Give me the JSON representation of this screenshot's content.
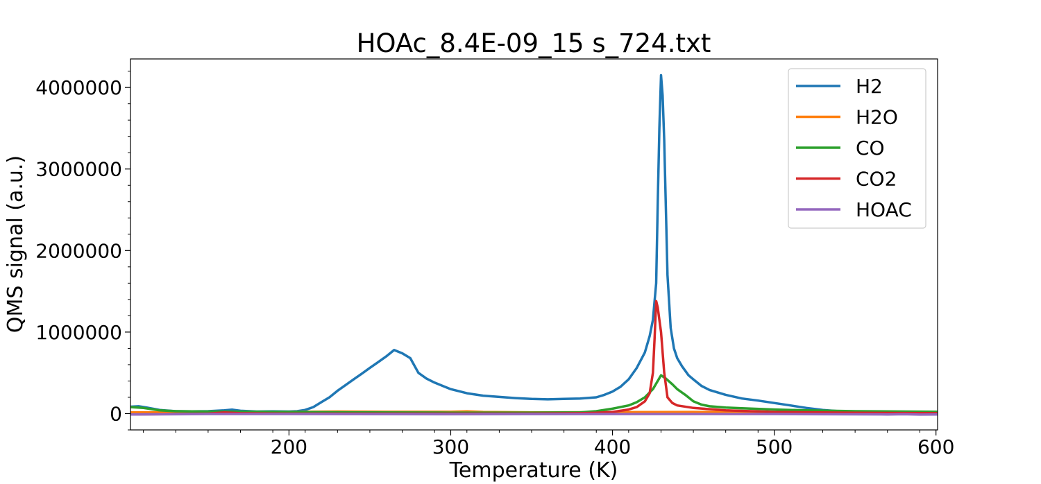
{
  "chart_data": {
    "type": "line",
    "title": "HOAc_8.4E-09_15 s_724.txt",
    "xlabel": "Temperature (K)",
    "ylabel": "QMS signal (a.u.)",
    "xlim": [
      102,
      601
    ],
    "ylim": [
      -200000,
      4350000
    ],
    "xticks": [
      200,
      300,
      400,
      500,
      600
    ],
    "xtick_labels": [
      "200",
      "300",
      "400",
      "500",
      "600"
    ],
    "yticks": [
      0,
      1000000,
      2000000,
      3000000,
      4000000
    ],
    "ytick_labels": [
      "0",
      "1000000",
      "2000000",
      "3000000",
      "4000000"
    ],
    "legend_position": "top-right",
    "grid": false,
    "series": [
      {
        "name": "H2",
        "color": "#1f77b4",
        "points": [
          [
            102,
            85000
          ],
          [
            107,
            90000
          ],
          [
            112,
            75000
          ],
          [
            120,
            45000
          ],
          [
            130,
            30000
          ],
          [
            140,
            28000
          ],
          [
            150,
            30000
          ],
          [
            160,
            40000
          ],
          [
            165,
            48000
          ],
          [
            170,
            35000
          ],
          [
            180,
            25000
          ],
          [
            190,
            28000
          ],
          [
            200,
            25000
          ],
          [
            205,
            30000
          ],
          [
            210,
            45000
          ],
          [
            215,
            80000
          ],
          [
            220,
            140000
          ],
          [
            225,
            200000
          ],
          [
            230,
            280000
          ],
          [
            235,
            350000
          ],
          [
            240,
            420000
          ],
          [
            245,
            490000
          ],
          [
            250,
            560000
          ],
          [
            255,
            630000
          ],
          [
            260,
            700000
          ],
          [
            265,
            780000
          ],
          [
            270,
            740000
          ],
          [
            275,
            680000
          ],
          [
            280,
            500000
          ],
          [
            285,
            430000
          ],
          [
            290,
            380000
          ],
          [
            295,
            340000
          ],
          [
            300,
            300000
          ],
          [
            310,
            250000
          ],
          [
            320,
            220000
          ],
          [
            330,
            205000
          ],
          [
            340,
            190000
          ],
          [
            350,
            180000
          ],
          [
            360,
            175000
          ],
          [
            370,
            180000
          ],
          [
            380,
            185000
          ],
          [
            390,
            200000
          ],
          [
            395,
            230000
          ],
          [
            400,
            270000
          ],
          [
            405,
            330000
          ],
          [
            410,
            420000
          ],
          [
            415,
            560000
          ],
          [
            420,
            750000
          ],
          [
            423,
            950000
          ],
          [
            425,
            1150000
          ],
          [
            427,
            1600000
          ],
          [
            428,
            2600000
          ],
          [
            429,
            3500000
          ],
          [
            430,
            4150000
          ],
          [
            431,
            3900000
          ],
          [
            432,
            3350000
          ],
          [
            434,
            1700000
          ],
          [
            436,
            1050000
          ],
          [
            438,
            800000
          ],
          [
            440,
            680000
          ],
          [
            443,
            580000
          ],
          [
            447,
            470000
          ],
          [
            450,
            420000
          ],
          [
            455,
            340000
          ],
          [
            460,
            290000
          ],
          [
            470,
            230000
          ],
          [
            480,
            185000
          ],
          [
            490,
            160000
          ],
          [
            500,
            130000
          ],
          [
            510,
            100000
          ],
          [
            520,
            70000
          ],
          [
            530,
            45000
          ],
          [
            540,
            30000
          ],
          [
            560,
            20000
          ],
          [
            580,
            15000
          ],
          [
            600,
            12000
          ]
        ]
      },
      {
        "name": "H2O",
        "color": "#ff7f0e",
        "points": [
          [
            102,
            15000
          ],
          [
            150,
            18000
          ],
          [
            200,
            20000
          ],
          [
            230,
            25000
          ],
          [
            260,
            22000
          ],
          [
            300,
            22000
          ],
          [
            310,
            28000
          ],
          [
            320,
            20000
          ],
          [
            350,
            15000
          ],
          [
            400,
            18000
          ],
          [
            450,
            20000
          ],
          [
            500,
            16000
          ],
          [
            550,
            15000
          ],
          [
            601,
            14000
          ]
        ]
      },
      {
        "name": "CO",
        "color": "#2ca02c",
        "points": [
          [
            102,
            80000
          ],
          [
            110,
            70000
          ],
          [
            120,
            40000
          ],
          [
            130,
            30000
          ],
          [
            150,
            25000
          ],
          [
            200,
            20000
          ],
          [
            250,
            15000
          ],
          [
            300,
            12000
          ],
          [
            350,
            12000
          ],
          [
            380,
            15000
          ],
          [
            390,
            30000
          ],
          [
            400,
            60000
          ],
          [
            410,
            100000
          ],
          [
            415,
            140000
          ],
          [
            420,
            200000
          ],
          [
            425,
            300000
          ],
          [
            430,
            470000
          ],
          [
            433,
            430000
          ],
          [
            437,
            360000
          ],
          [
            440,
            300000
          ],
          [
            445,
            230000
          ],
          [
            450,
            150000
          ],
          [
            455,
            110000
          ],
          [
            460,
            90000
          ],
          [
            470,
            75000
          ],
          [
            480,
            65000
          ],
          [
            500,
            50000
          ],
          [
            520,
            40000
          ],
          [
            550,
            30000
          ],
          [
            580,
            25000
          ],
          [
            601,
            22000
          ]
        ]
      },
      {
        "name": "CO2",
        "color": "#d62728",
        "points": [
          [
            102,
            -10000
          ],
          [
            150,
            0
          ],
          [
            160,
            15000
          ],
          [
            170,
            5000
          ],
          [
            200,
            0
          ],
          [
            300,
            0
          ],
          [
            350,
            0
          ],
          [
            380,
            5000
          ],
          [
            390,
            10000
          ],
          [
            400,
            20000
          ],
          [
            410,
            50000
          ],
          [
            415,
            80000
          ],
          [
            420,
            150000
          ],
          [
            423,
            250000
          ],
          [
            425,
            500000
          ],
          [
            426,
            900000
          ],
          [
            427,
            1380000
          ],
          [
            428,
            1300000
          ],
          [
            429,
            1150000
          ],
          [
            430,
            1000000
          ],
          [
            432,
            500000
          ],
          [
            434,
            200000
          ],
          [
            437,
            130000
          ],
          [
            440,
            100000
          ],
          [
            450,
            70000
          ],
          [
            470,
            40000
          ],
          [
            500,
            20000
          ],
          [
            550,
            10000
          ],
          [
            601,
            5000
          ]
        ]
      },
      {
        "name": "HOAC",
        "color": "#9467bd",
        "points": [
          [
            102,
            -10000
          ],
          [
            150,
            -5000
          ],
          [
            200,
            -5000
          ],
          [
            300,
            -8000
          ],
          [
            400,
            -5000
          ],
          [
            500,
            -5000
          ],
          [
            570,
            -10000
          ],
          [
            580,
            -8000
          ],
          [
            590,
            -12000
          ],
          [
            601,
            -10000
          ]
        ]
      }
    ]
  }
}
